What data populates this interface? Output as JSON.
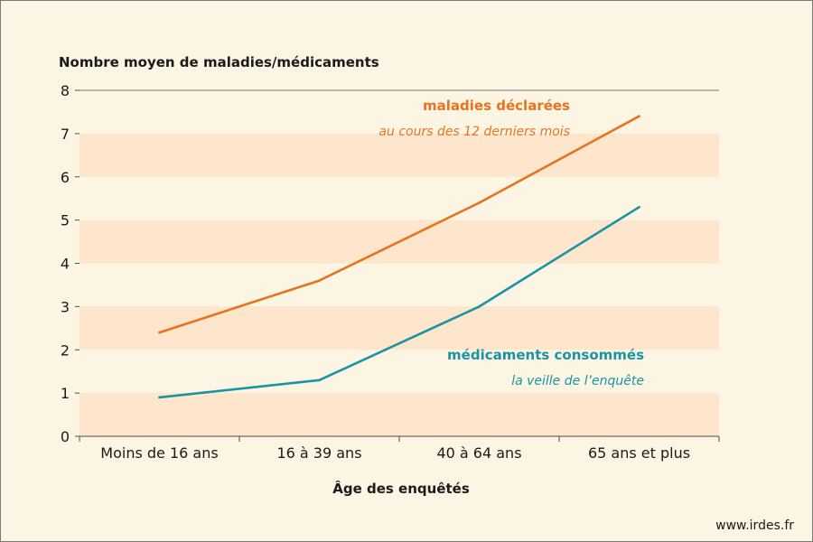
{
  "chart_data": {
    "type": "line",
    "ylabel": "Nombre moyen de maladies/médicaments",
    "xlabel": "Âge des enquêtés",
    "categories": [
      "Moins de 16 ans",
      "16 à 39 ans",
      "40 à 64 ans",
      "65 ans et plus"
    ],
    "ylim": [
      0,
      8
    ],
    "yticks": [
      0,
      1,
      2,
      3,
      4,
      5,
      6,
      7,
      8
    ],
    "grid": "alternating horizontal bands",
    "series": [
      {
        "name": "maladies déclarées",
        "subtitle": "au cours des 12 derniers mois",
        "color": "#e8731f",
        "values": [
          2.4,
          3.6,
          5.4,
          7.4
        ]
      },
      {
        "name": "médicaments consommés",
        "subtitle": "la veille de l’enquête",
        "color": "#1b93a3",
        "values": [
          0.9,
          1.3,
          3.0,
          5.3
        ]
      }
    ]
  },
  "colors": {
    "background": "#fdf5e3",
    "band": "#fde6cc",
    "axis": "#4d4d4d"
  },
  "source": "www.irdes.fr"
}
